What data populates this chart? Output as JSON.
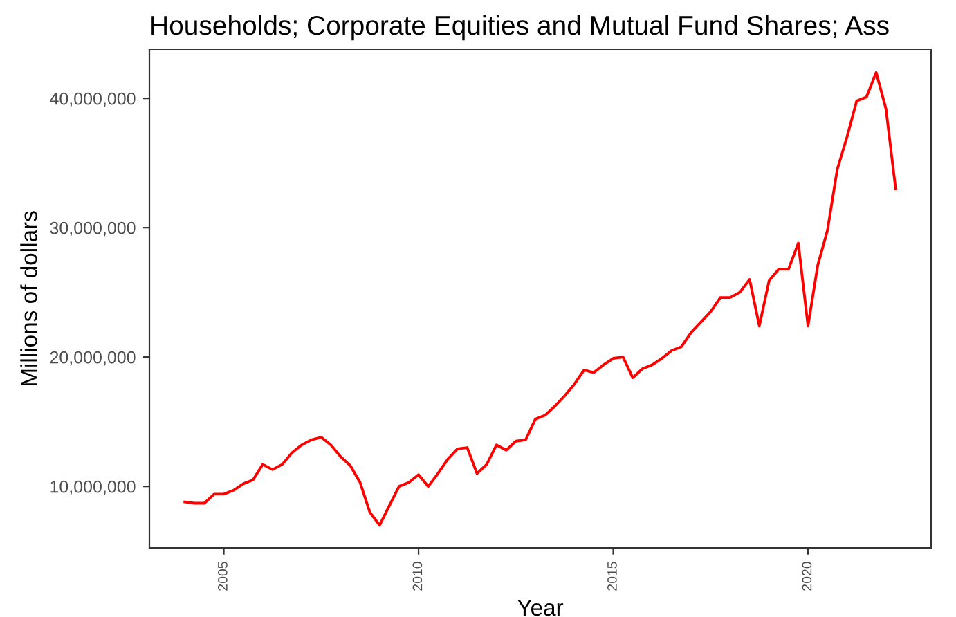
{
  "chart_data": {
    "type": "line",
    "title": "Households; Corporate Equities and Mutual Fund Shares; Ass",
    "xlabel": "Year",
    "ylabel": "Millions of dollars",
    "series": [
      {
        "color": "#ff0000",
        "x": [
          2004.0,
          2004.25,
          2004.5,
          2004.75,
          2005.0,
          2005.25,
          2005.5,
          2005.75,
          2006.0,
          2006.25,
          2006.5,
          2006.75,
          2007.0,
          2007.25,
          2007.5,
          2007.75,
          2008.0,
          2008.25,
          2008.5,
          2008.75,
          2009.0,
          2009.25,
          2009.5,
          2009.75,
          2010.0,
          2010.25,
          2010.5,
          2010.75,
          2011.0,
          2011.25,
          2011.5,
          2011.75,
          2012.0,
          2012.25,
          2012.5,
          2012.75,
          2013.0,
          2013.25,
          2013.5,
          2013.75,
          2014.0,
          2014.25,
          2014.5,
          2014.75,
          2015.0,
          2015.25,
          2015.5,
          2015.75,
          2016.0,
          2016.25,
          2016.5,
          2016.75,
          2017.0,
          2017.25,
          2017.5,
          2017.75,
          2018.0,
          2018.25,
          2018.5,
          2018.75,
          2019.0,
          2019.25,
          2019.5,
          2019.75,
          2020.0,
          2020.25,
          2020.5,
          2020.75,
          2021.0,
          2021.25,
          2021.5,
          2021.75,
          2022.0,
          2022.25
        ],
        "values": [
          8800000,
          8700000,
          8700000,
          9400000,
          9400000,
          9700000,
          10200000,
          10500000,
          11700000,
          11300000,
          11700000,
          12600000,
          13200000,
          13600000,
          13800000,
          13200000,
          12300000,
          11600000,
          10300000,
          8000000,
          7000000,
          8500000,
          10000000,
          10300000,
          10900000,
          10000000,
          11000000,
          12100000,
          12900000,
          13000000,
          11000000,
          11700000,
          13200000,
          12800000,
          13500000,
          13600000,
          15200000,
          15500000,
          16200000,
          17000000,
          17900000,
          19000000,
          18800000,
          19400000,
          19900000,
          20000000,
          18400000,
          19100000,
          19400000,
          19900000,
          20500000,
          20800000,
          21900000,
          22700000,
          23500000,
          24600000,
          24600000,
          25000000,
          26000000,
          22400000,
          25900000,
          26800000,
          26800000,
          28800000,
          22400000,
          27100000,
          29800000,
          34500000,
          37000000,
          39800000,
          40100000,
          42000000,
          39200000,
          33000000
        ]
      }
    ],
    "xlim": [
      2003.09,
      2023.16
    ],
    "xticks": [
      2005,
      2010,
      2015,
      2020
    ],
    "ylim": [
      5250000,
      43750000
    ],
    "yticks": [
      {
        "value": 10000000,
        "label": "10,000,000"
      },
      {
        "value": 20000000,
        "label": "20,000,000"
      },
      {
        "value": 30000000,
        "label": "30,000,000"
      },
      {
        "value": 40000000,
        "label": "40,000,000"
      }
    ],
    "grid": false,
    "marker": "none",
    "line_style": "solid"
  }
}
